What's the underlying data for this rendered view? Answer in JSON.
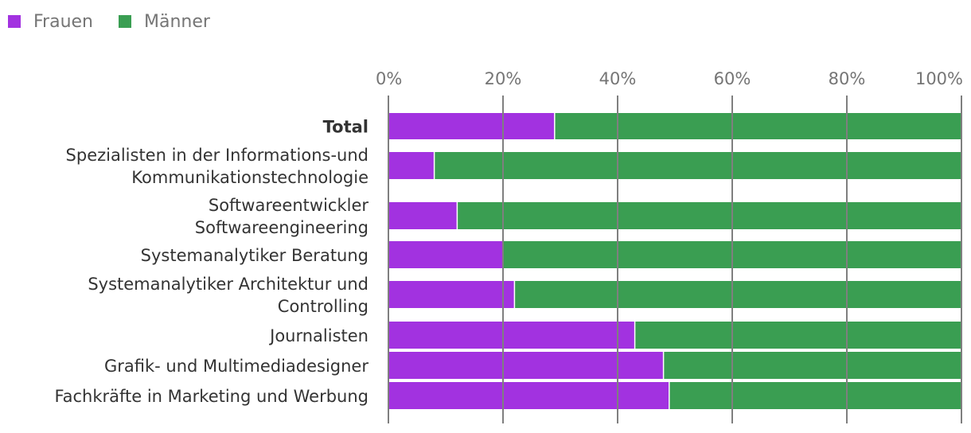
{
  "chart_data": {
    "type": "bar",
    "orientation": "horizontal",
    "stacked": true,
    "percent": true,
    "x_axis": {
      "range": [
        0,
        100
      ],
      "ticks": [
        0,
        20,
        40,
        60,
        80,
        100
      ],
      "tick_labels": [
        "0%",
        "20%",
        "40%",
        "60%",
        "80%",
        "100%"
      ],
      "position": "top"
    },
    "categories": [
      [
        "Total"
      ],
      [
        "Spezialisten in der Informations-und",
        "Kommunikationstechnologie"
      ],
      [
        "Softwareentwickler",
        "Softwareengineering"
      ],
      [
        "Systemanalytiker Beratung"
      ],
      [
        "Systemanalytiker Architektur und",
        "Controlling"
      ],
      [
        "Journalisten"
      ],
      [
        "Grafik- und Multimediadesigner"
      ],
      [
        "Fachkräfte in Marketing und Werbung"
      ]
    ],
    "series": [
      {
        "name": "Frauen",
        "color": "#a232e0",
        "values": [
          29,
          8,
          12,
          20,
          22,
          43,
          48,
          49
        ]
      },
      {
        "name": "Männer",
        "color": "#3a9e52",
        "values": [
          71,
          92,
          88,
          80,
          78,
          57,
          52,
          51
        ]
      }
    ],
    "legend": {
      "position": "top-left",
      "items": [
        {
          "label": "Frauen",
          "color": "#a232e0"
        },
        {
          "label": "Männer",
          "color": "#3a9e52"
        }
      ]
    }
  }
}
